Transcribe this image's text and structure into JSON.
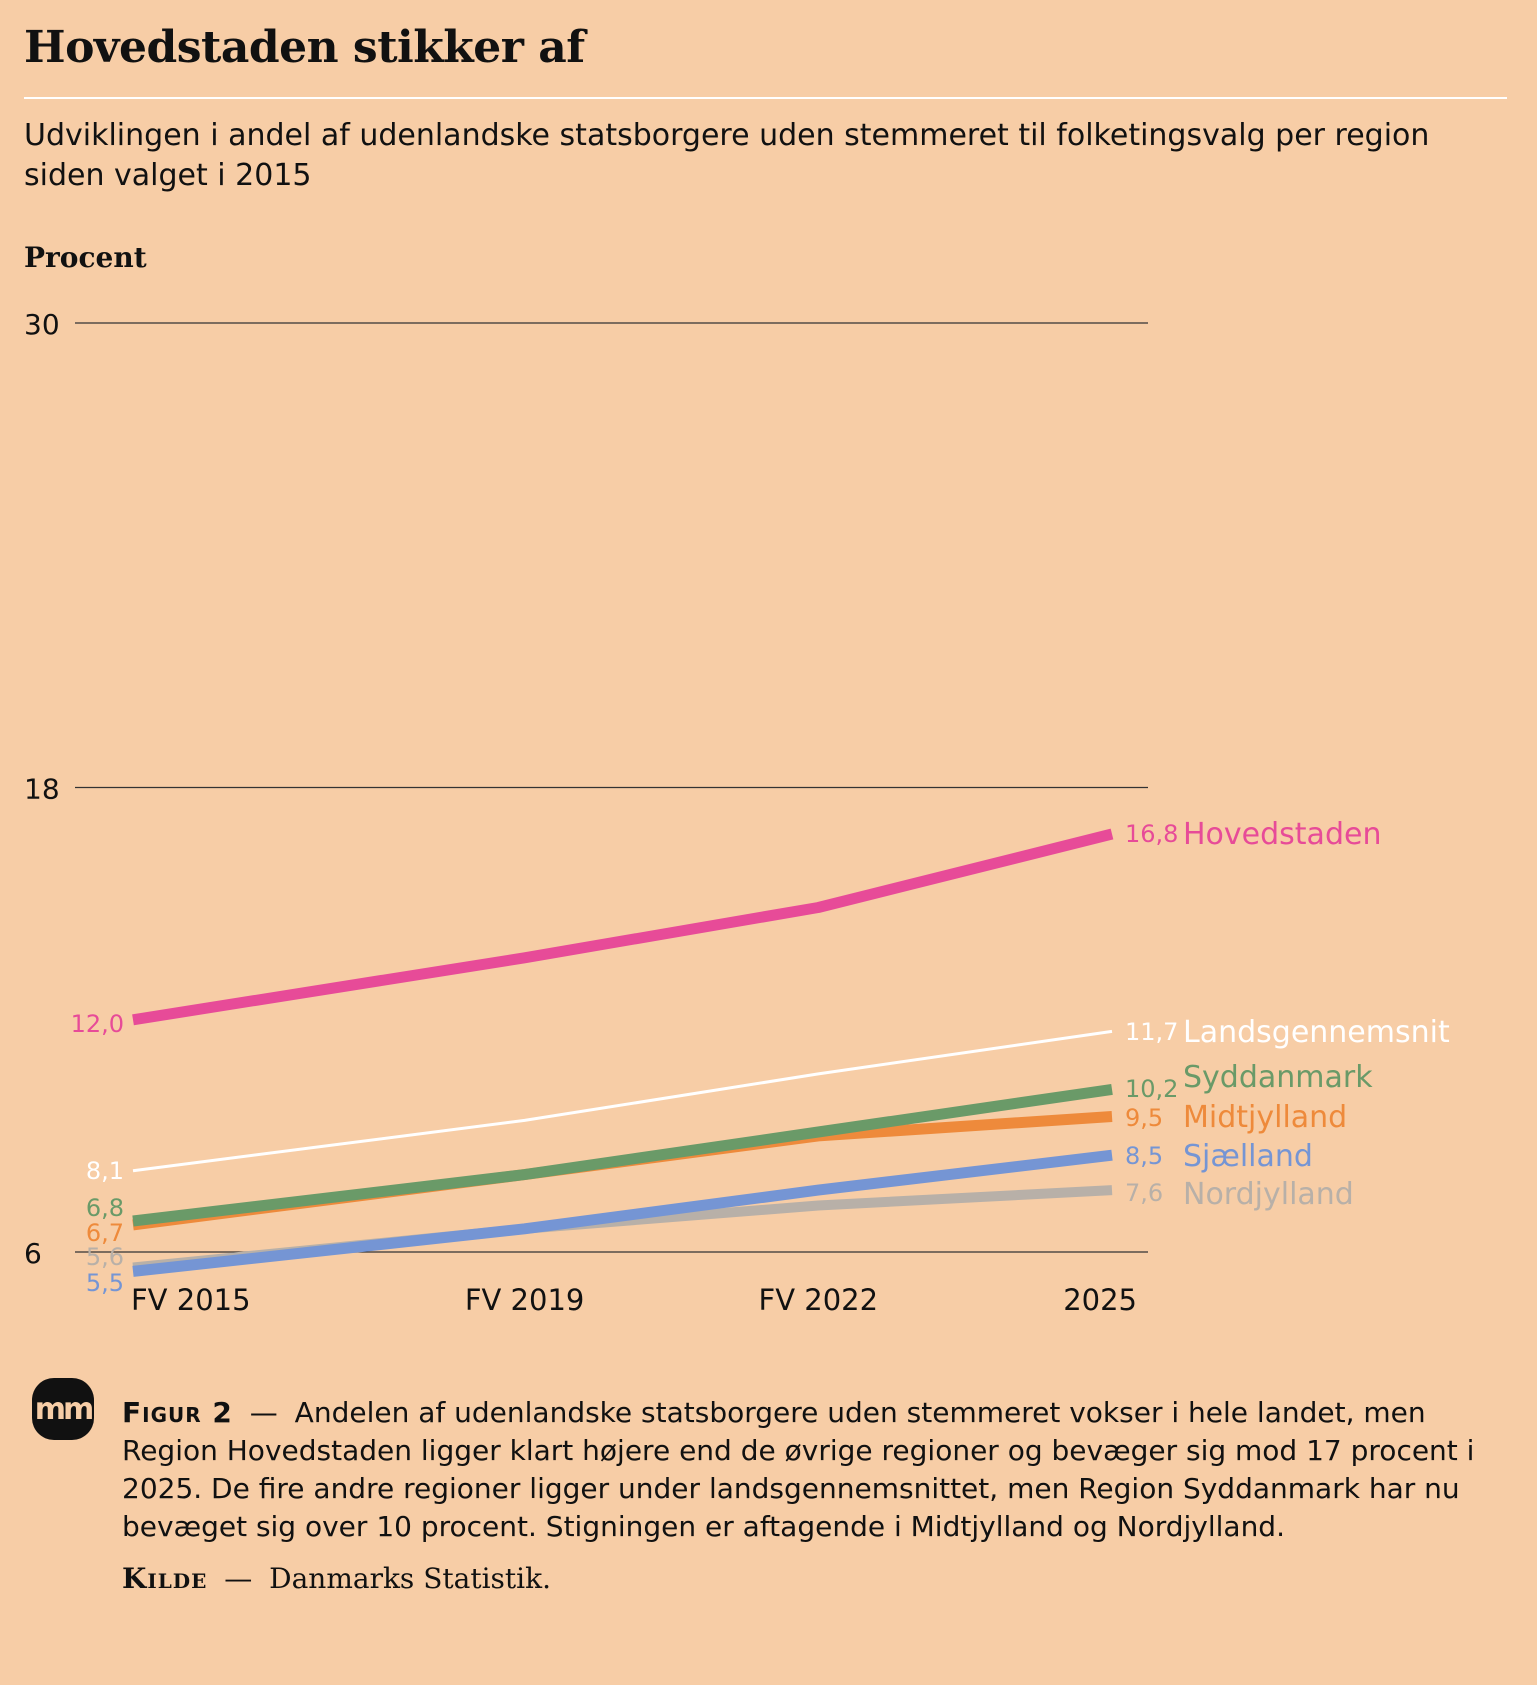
{
  "title": "Hovedstaden stikker af",
  "subtitle": "Udviklingen i andel af udenlandske statsborgere uden stemmeret til folketingsvalg per region siden valget i 2015",
  "logo_text": "mm",
  "caption": {
    "label": "Figur 2",
    "dash": "—",
    "text": "Andelen af udenlandske statsborgere uden stemmeret vokser i hele landet, men Region Hovedstaden ligger klart højere end de øvrige regioner og bevæger sig mod 17 procent i 2025. De fire andre regioner ligger under landsgennemsnittet, men Region Syddanmark har nu bevæget sig over 10 procent. Stigningen er aftagende i Midtjylland og Nordjylland."
  },
  "source": {
    "label": "Kilde",
    "dash": "—",
    "text": "Danmarks Statistik."
  },
  "chart_data": {
    "type": "line",
    "ylabel": "Procent",
    "ylim": [
      6,
      30
    ],
    "yticks": [
      "30",
      "18",
      "6"
    ],
    "ytick_values": [
      30,
      18,
      6
    ],
    "categories": [
      "FV 2015",
      "FV 2019",
      "FV 2022",
      "2025"
    ],
    "x": [
      2015,
      2019,
      2022,
      2025
    ],
    "grid": true,
    "series": [
      {
        "name": "Nordjylland",
        "values": [
          5.6,
          6.6,
          7.2,
          7.6
        ],
        "start_label": "5,6",
        "end_label": "7,6",
        "color": "#b8b0a8",
        "width": 10
      },
      {
        "name": "Sjælland",
        "values": [
          5.5,
          6.6,
          7.6,
          8.5
        ],
        "start_label": "5,5",
        "end_label": "8,5",
        "color": "#7595d4",
        "width": 11
      },
      {
        "name": "Midtjylland",
        "values": [
          6.7,
          8.0,
          9.0,
          9.5
        ],
        "start_label": "6,7",
        "end_label": "9,5",
        "color": "#ee8a3b",
        "width": 11
      },
      {
        "name": "Syddanmark",
        "values": [
          6.8,
          8.0,
          9.1,
          10.2
        ],
        "start_label": "6,8",
        "end_label": "10,2",
        "color": "#6a9a68",
        "width": 11
      },
      {
        "name": "Landsgennemsnit",
        "values": [
          8.1,
          9.4,
          10.6,
          11.7
        ],
        "start_label": "8,1",
        "end_label": "11,7",
        "color": "#ffffff",
        "width": 3
      },
      {
        "name": "Hovedstaden",
        "values": [
          12.0,
          13.6,
          14.9,
          16.8
        ],
        "start_label": "12,0",
        "end_label": "16,8",
        "color": "#e74b98",
        "width": 11
      }
    ]
  }
}
